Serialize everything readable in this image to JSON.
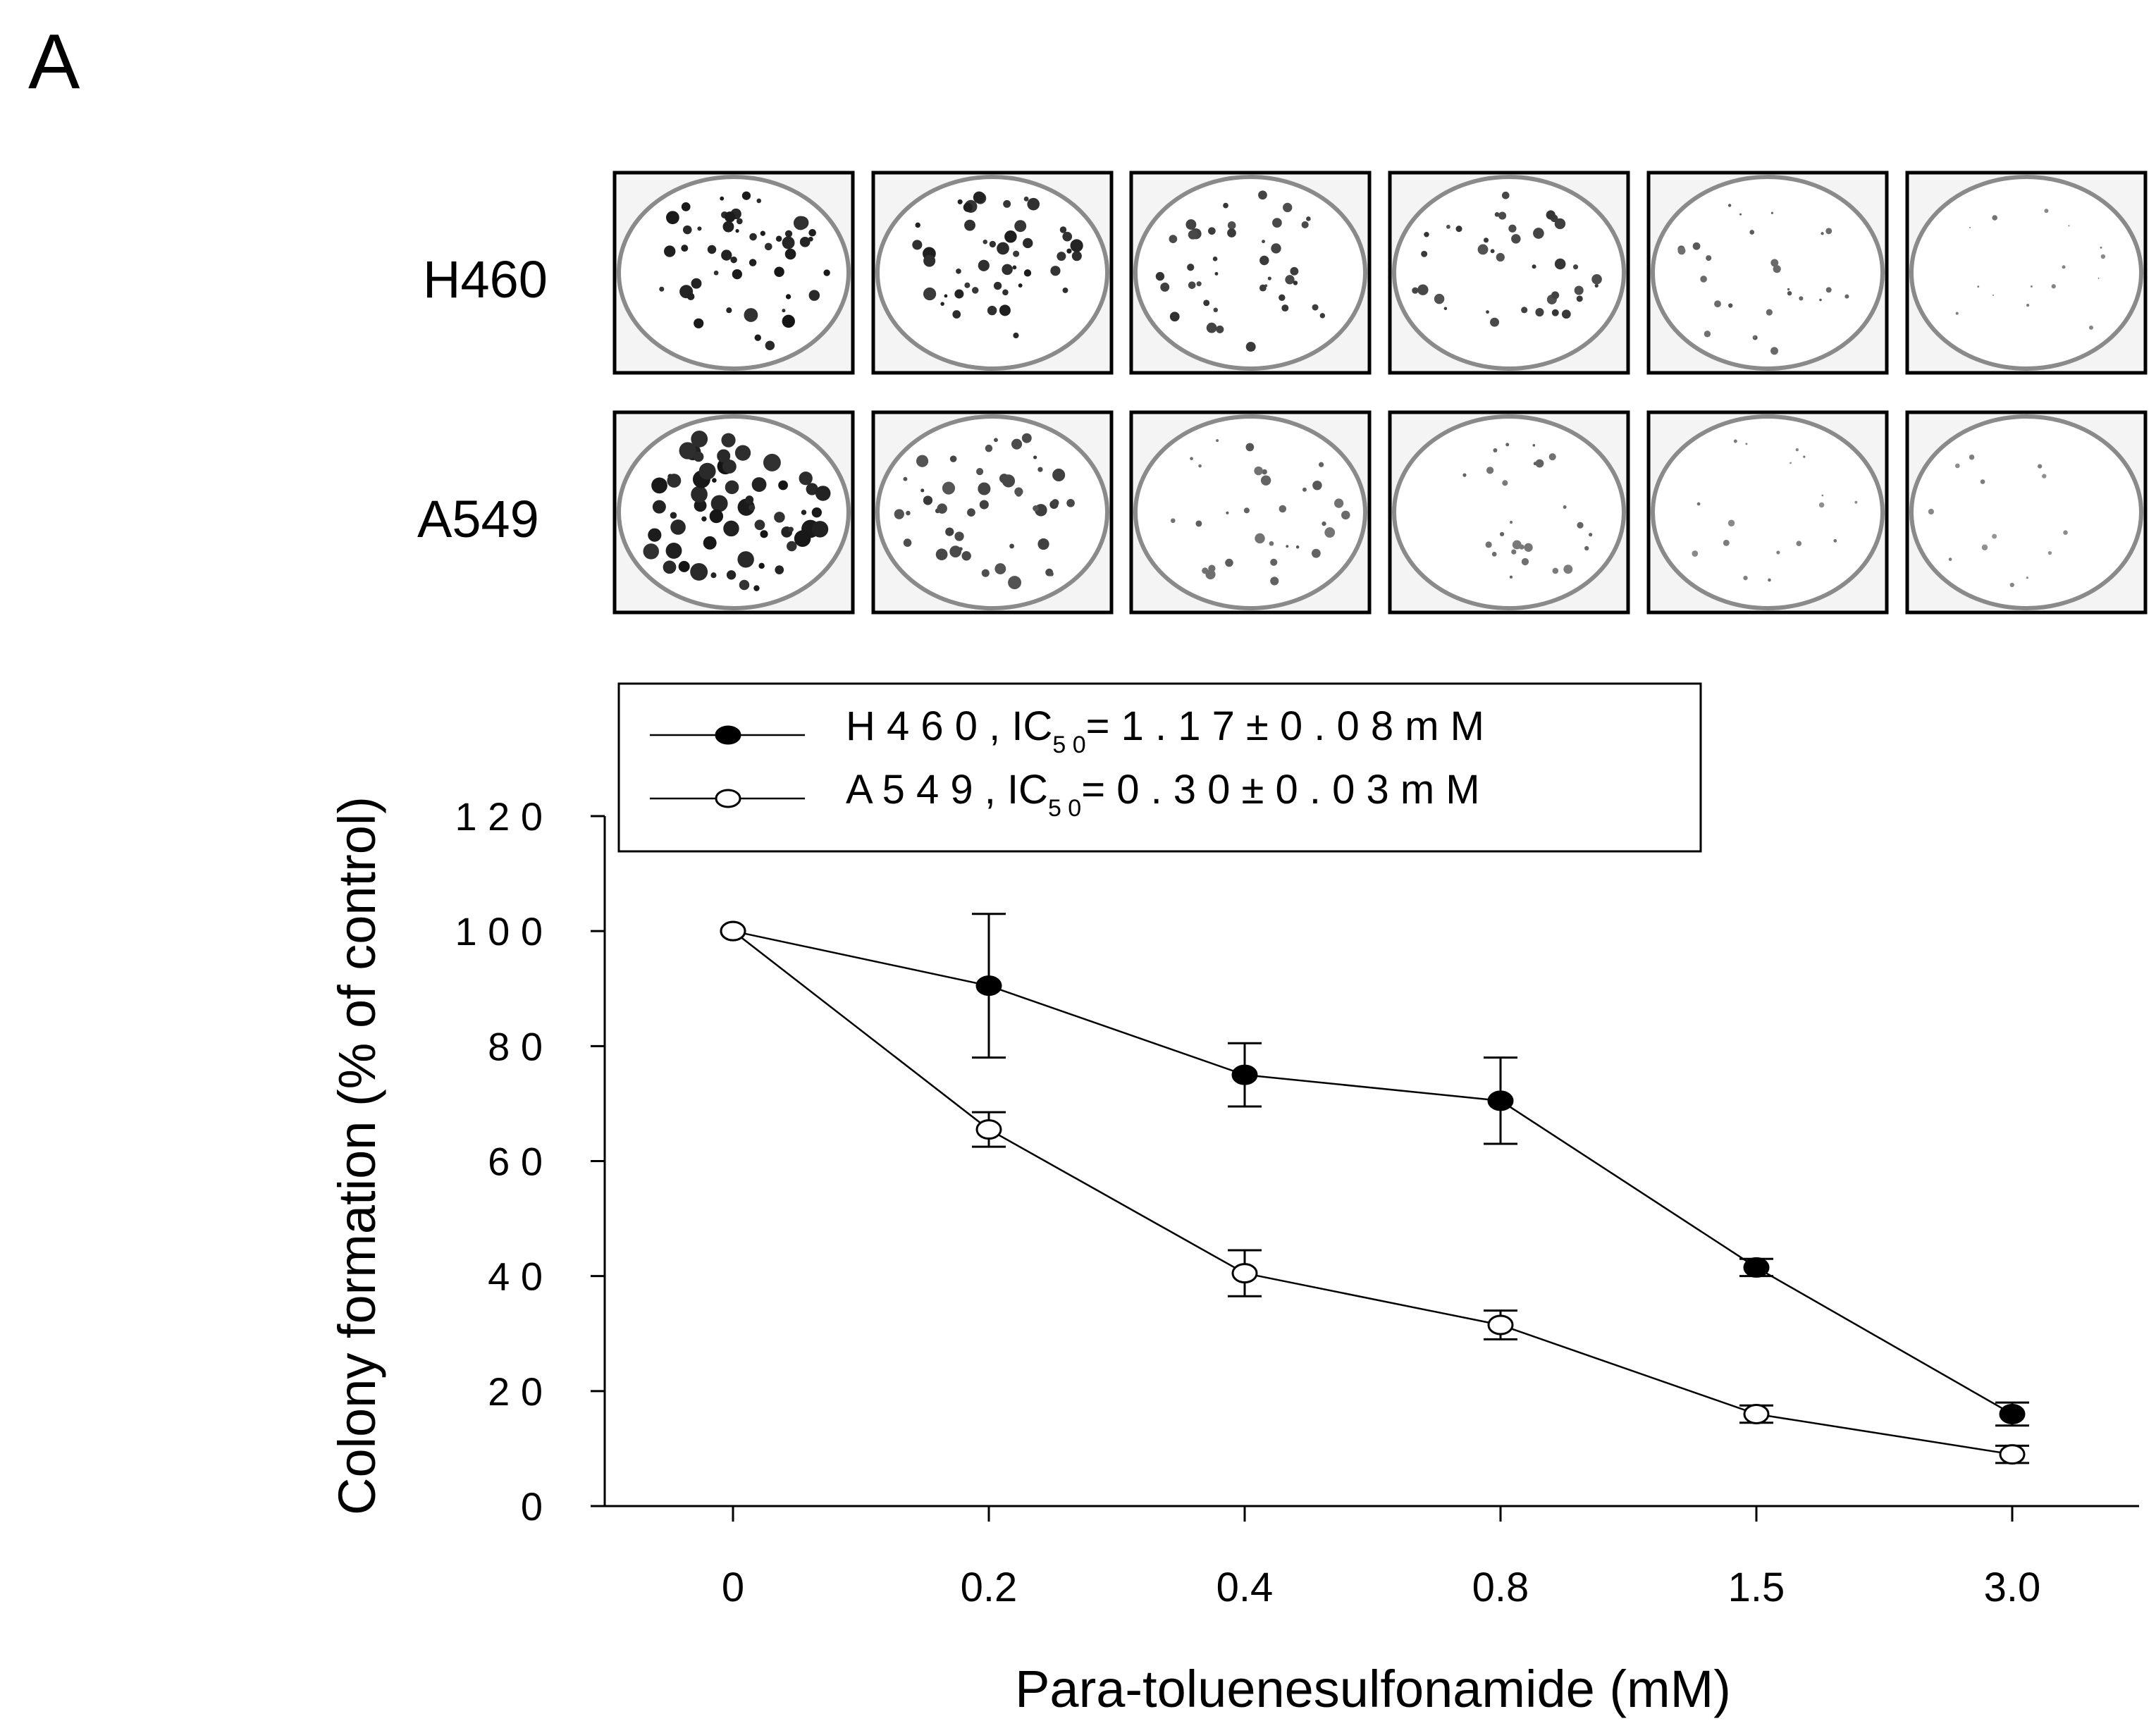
{
  "panel_label": "A",
  "plates": {
    "rows": [
      {
        "label": "H460",
        "density": [
          1.0,
          0.92,
          0.74,
          0.7,
          0.42,
          0.16
        ]
      },
      {
        "label": "A549",
        "density": [
          1.0,
          0.66,
          0.4,
          0.32,
          0.16,
          0.09
        ]
      }
    ]
  },
  "legend": {
    "entries": [
      {
        "series": "H460",
        "marker": "filled",
        "label": "H 4 6 0 ,  IC",
        "sub": "5 0",
        "value": "= 1 . 1 7 ± 0 . 0 8   m M"
      },
      {
        "series": "A549",
        "marker": "open",
        "label": "A 5 4 9 ,  IC",
        "sub": "5 0",
        "value": "=   0 . 3 0 ± 0 . 0 3   m M"
      }
    ]
  },
  "chart_data": {
    "type": "line",
    "xlabel": "Para-toluenesulfonamide (mM)",
    "ylabel": "Colony formation (% of control)",
    "categories": [
      "0",
      "0.2",
      "0.4",
      "0.8",
      "1.5",
      "3.0"
    ],
    "ylim": [
      0,
      120
    ],
    "yticks": [
      0,
      20,
      40,
      60,
      80,
      100,
      120
    ],
    "ytick_labels": [
      "0",
      "2 0",
      "4 0",
      "6 0",
      "8 0",
      "1 0 0",
      "1 2 0"
    ],
    "grid": false,
    "legend_position": "top",
    "series": [
      {
        "name": "H460",
        "marker": "filled",
        "values": [
          100,
          90.5,
          75,
          70.5,
          41.5,
          16
        ],
        "errors": [
          0,
          12.5,
          5.5,
          7.5,
          1.5,
          2
        ]
      },
      {
        "name": "A549",
        "marker": "open",
        "values": [
          100,
          65.5,
          40.5,
          31.5,
          16,
          9
        ],
        "errors": [
          0,
          3,
          4,
          2.5,
          1.5,
          1.5
        ]
      }
    ]
  },
  "colors": {
    "ink": "#000000",
    "plate_bg": "#f4f4f4",
    "colony": "#1a1a1a"
  }
}
